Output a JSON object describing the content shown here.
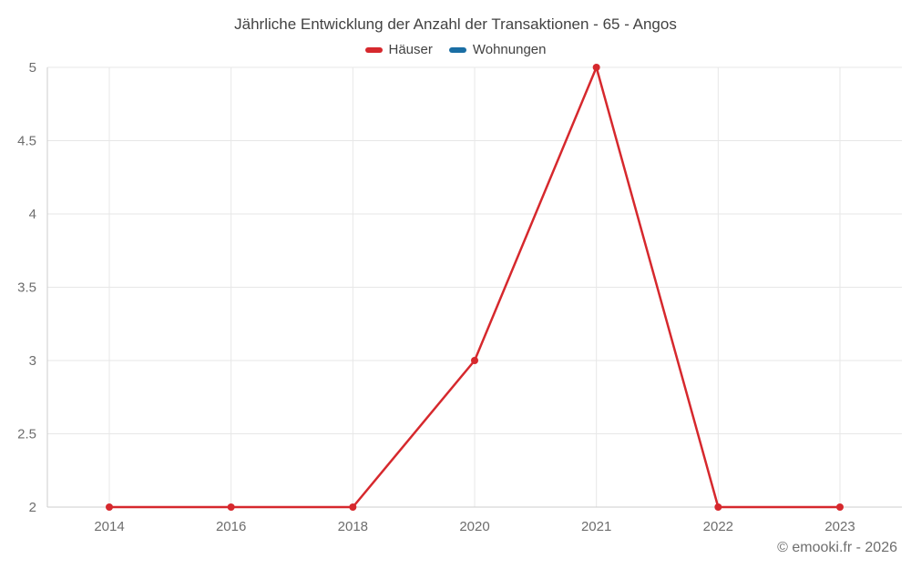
{
  "header": {
    "title": "Jährliche Entwicklung der Anzahl der Transaktionen - 65 - Angos"
  },
  "legend": {
    "items": [
      {
        "label": "Häuser",
        "color": "#d6282d"
      },
      {
        "label": "Wohnungen",
        "color": "#1a6ea4"
      }
    ]
  },
  "footer": {
    "copyright": "© emooki.fr - 2026"
  },
  "style": {
    "background": "#ffffff",
    "grid_color": "#e7e7e7",
    "axis_color": "#cccccc",
    "tick_label_color": "#6d6d6d",
    "title_color": "#424242",
    "copyright_color": "#6e6e6e"
  },
  "chart_data": {
    "type": "line",
    "title": "Jährliche Entwicklung der Anzahl der Transaktionen - 65 - Angos",
    "categories": [
      "2014",
      "2016",
      "2018",
      "2020",
      "2021",
      "2022",
      "2023"
    ],
    "series": [
      {
        "name": "Häuser",
        "color": "#d6282d",
        "values": [
          2,
          2,
          2,
          3,
          5,
          2,
          2
        ]
      },
      {
        "name": "Wohnungen",
        "color": "#1a6ea4",
        "values": []
      }
    ],
    "xlabel": "",
    "ylabel": "",
    "ylim": [
      2,
      5
    ],
    "yticks": [
      2,
      2.5,
      3,
      3.5,
      4,
      4.5,
      5
    ],
    "grid": true,
    "legend_position": "top",
    "marker_radius": 4,
    "line_width": 2.5
  }
}
